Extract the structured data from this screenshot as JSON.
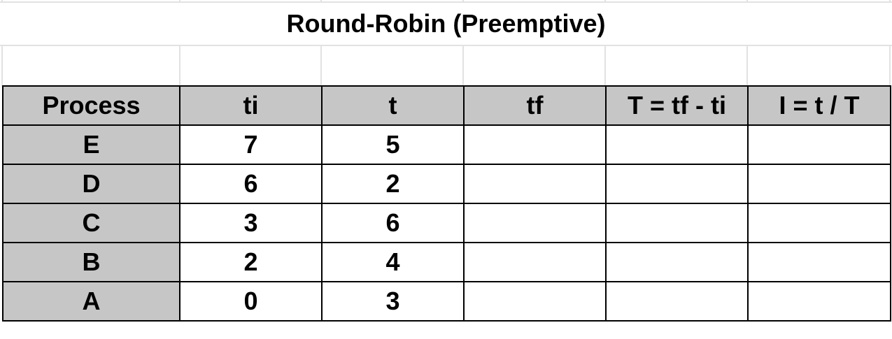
{
  "title": "Round-Robin (Preemptive)",
  "headers": [
    "Process",
    "ti",
    "t",
    "tf",
    "T = tf - ti",
    "I = t / T"
  ],
  "rows": [
    {
      "process": "E",
      "ti": "7",
      "t": "5",
      "tf": "",
      "T": "",
      "I": ""
    },
    {
      "process": "D",
      "ti": "6",
      "t": "2",
      "tf": "",
      "T": "",
      "I": ""
    },
    {
      "process": "C",
      "ti": "3",
      "t": "6",
      "tf": "",
      "T": "",
      "I": ""
    },
    {
      "process": "B",
      "ti": "2",
      "t": "4",
      "tf": "",
      "T": "",
      "I": ""
    },
    {
      "process": "A",
      "ti": "0",
      "t": "3",
      "tf": "",
      "T": "",
      "I": ""
    }
  ],
  "colors": {
    "header_fill": "#c6c6c6",
    "border": "#000000",
    "gridline": "#e2e2e2"
  }
}
